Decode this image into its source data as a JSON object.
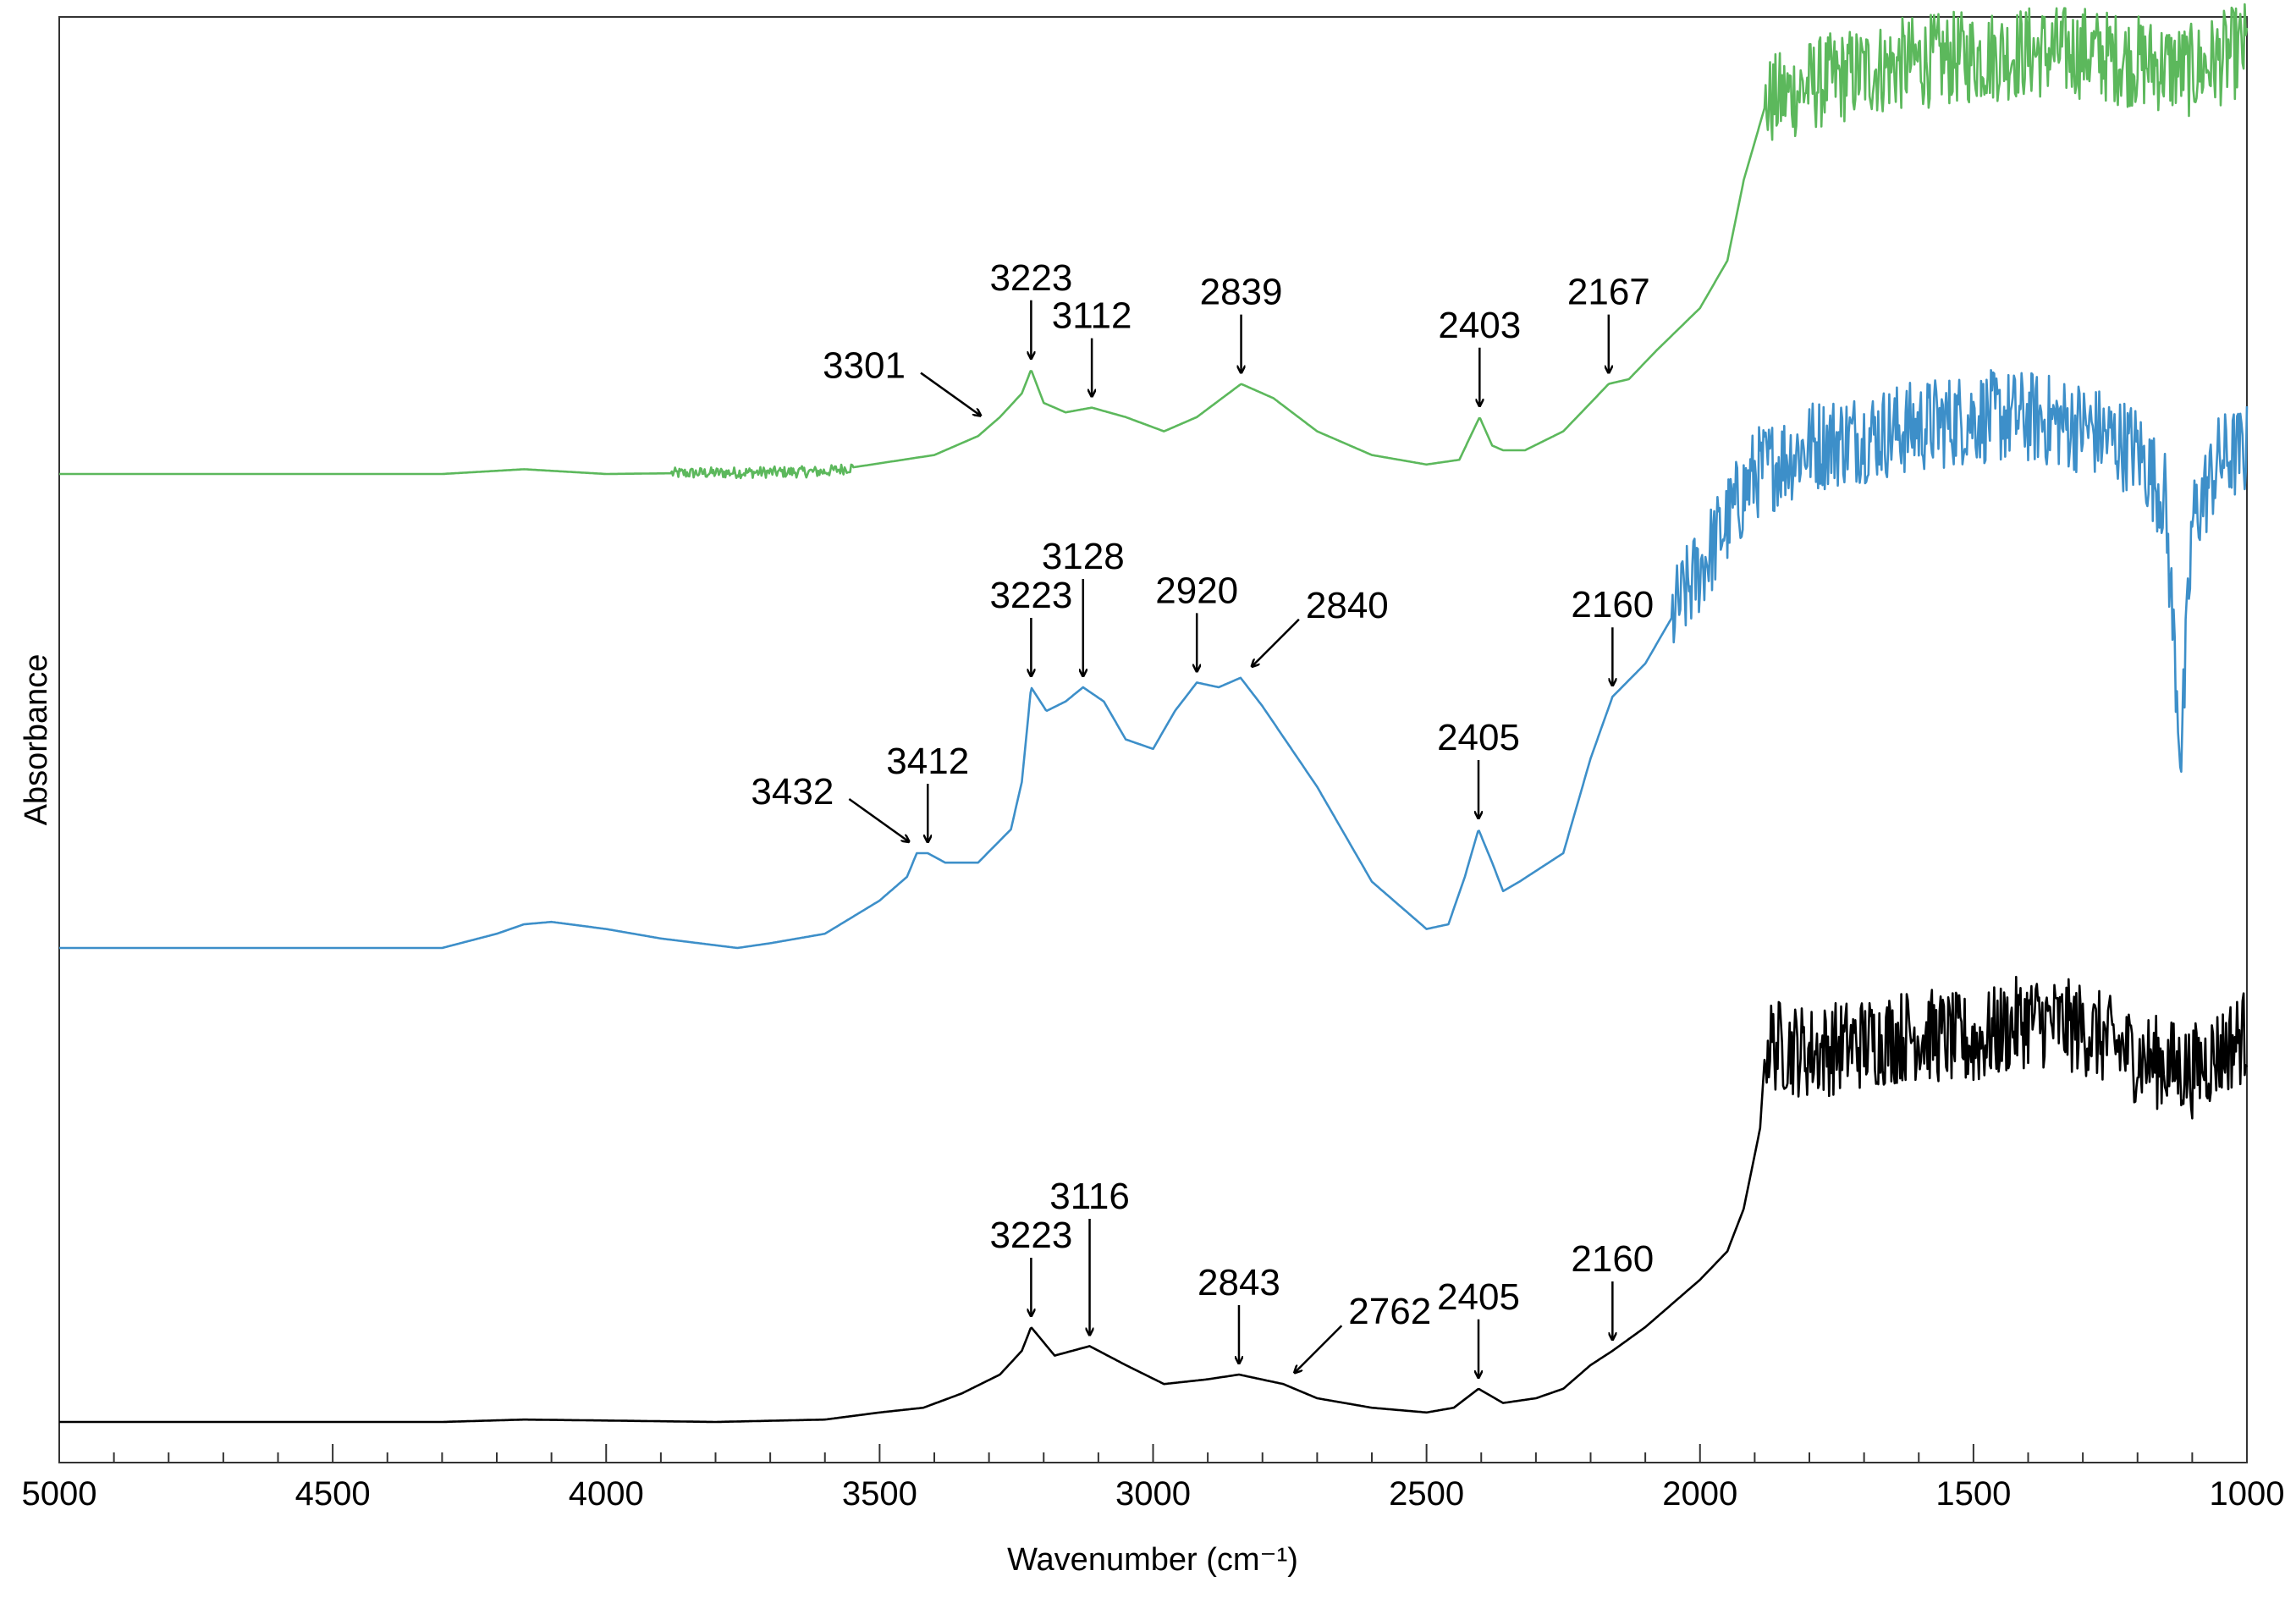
{
  "chart_data": {
    "type": "line",
    "title": "",
    "xlabel": "Wavenumber (cm⁻¹)",
    "ylabel": "Absorbance",
    "xlim": [
      5000,
      1000
    ],
    "x_reversed": true,
    "y_ticks_shown": false,
    "grid": false,
    "legend": "none",
    "x_ticks": [
      "5000",
      "4500",
      "4000",
      "3500",
      "3000",
      "2500",
      "2000",
      "1500",
      "1000"
    ],
    "x_tick_values": [
      5000,
      4500,
      4000,
      3500,
      3000,
      2500,
      2000,
      1500,
      1000
    ],
    "series": [
      {
        "color": "#5cb85c",
        "offset": 2.0,
        "noise": [
          {
            "from": 3880,
            "to": 3550,
            "amp": 0.012
          },
          {
            "from": 1880,
            "to": 1000,
            "amp": 0.1
          }
        ],
        "points": [
          [
            5000,
            0
          ],
          [
            4300,
            0
          ],
          [
            4150,
            0.01
          ],
          [
            4000,
            0
          ],
          [
            3600,
            0.005
          ],
          [
            3400,
            0.04
          ],
          [
            3320,
            0.08
          ],
          [
            3280,
            0.12
          ],
          [
            3240,
            0.17
          ],
          [
            3223,
            0.22
          ],
          [
            3200,
            0.15
          ],
          [
            3160,
            0.13
          ],
          [
            3112,
            0.14
          ],
          [
            3050,
            0.12
          ],
          [
            2980,
            0.09
          ],
          [
            2920,
            0.12
          ],
          [
            2839,
            0.19
          ],
          [
            2780,
            0.16
          ],
          [
            2700,
            0.09
          ],
          [
            2600,
            0.04
          ],
          [
            2500,
            0.02
          ],
          [
            2440,
            0.03
          ],
          [
            2403,
            0.12
          ],
          [
            2380,
            0.06
          ],
          [
            2360,
            0.05
          ],
          [
            2320,
            0.05
          ],
          [
            2250,
            0.09
          ],
          [
            2200,
            0.15
          ],
          [
            2167,
            0.19
          ],
          [
            2130,
            0.2
          ],
          [
            2080,
            0.26
          ],
          [
            2000,
            0.35
          ],
          [
            1950,
            0.45
          ],
          [
            1920,
            0.62
          ],
          [
            1880,
            0.78
          ],
          [
            1800,
            0.82
          ],
          [
            1700,
            0.85
          ],
          [
            1600,
            0.87
          ],
          [
            1500,
            0.88
          ],
          [
            1400,
            0.89
          ],
          [
            1300,
            0.89
          ],
          [
            1200,
            0.87
          ],
          [
            1100,
            0.85
          ],
          [
            1000,
            0.9
          ]
        ]
      },
      {
        "color": "#3d8fc9",
        "offset": 1.0,
        "noise": [
          {
            "from": 2050,
            "to": 1000,
            "amp": 0.1
          }
        ],
        "points": [
          [
            5000,
            0
          ],
          [
            4300,
            0
          ],
          [
            4200,
            0.03
          ],
          [
            4150,
            0.05
          ],
          [
            4100,
            0.055
          ],
          [
            4000,
            0.04
          ],
          [
            3900,
            0.02
          ],
          [
            3760,
            0
          ],
          [
            3700,
            0.01
          ],
          [
            3600,
            0.03
          ],
          [
            3500,
            0.1
          ],
          [
            3450,
            0.15
          ],
          [
            3432,
            0.2
          ],
          [
            3412,
            0.2
          ],
          [
            3380,
            0.18
          ],
          [
            3320,
            0.18
          ],
          [
            3260,
            0.25
          ],
          [
            3240,
            0.35
          ],
          [
            3223,
            0.55
          ],
          [
            3195,
            0.5
          ],
          [
            3160,
            0.52
          ],
          [
            3128,
            0.55
          ],
          [
            3090,
            0.52
          ],
          [
            3050,
            0.44
          ],
          [
            3000,
            0.42
          ],
          [
            2960,
            0.5
          ],
          [
            2920,
            0.56
          ],
          [
            2880,
            0.55
          ],
          [
            2840,
            0.57
          ],
          [
            2800,
            0.51
          ],
          [
            2700,
            0.34
          ],
          [
            2600,
            0.14
          ],
          [
            2500,
            0.04
          ],
          [
            2460,
            0.05
          ],
          [
            2430,
            0.15
          ],
          [
            2405,
            0.25
          ],
          [
            2380,
            0.18
          ],
          [
            2360,
            0.12
          ],
          [
            2330,
            0.14
          ],
          [
            2250,
            0.2
          ],
          [
            2200,
            0.4
          ],
          [
            2160,
            0.53
          ],
          [
            2100,
            0.6
          ],
          [
            2000,
            0.8
          ],
          [
            1950,
            0.9
          ],
          [
            1900,
            1.0
          ],
          [
            1800,
            1.06
          ],
          [
            1700,
            1.08
          ],
          [
            1600,
            1.1
          ],
          [
            1500,
            1.12
          ],
          [
            1400,
            1.12
          ],
          [
            1300,
            1.1
          ],
          [
            1200,
            1.05
          ],
          [
            1150,
            0.95
          ],
          [
            1120,
            0.4
          ],
          [
            1100,
            0.9
          ],
          [
            1050,
            1.03
          ],
          [
            1000,
            1.05
          ]
        ]
      },
      {
        "color": "#000000",
        "offset": 0.0,
        "noise": [
          {
            "from": 1880,
            "to": 1000,
            "amp": 0.1
          }
        ],
        "points": [
          [
            5000,
            0
          ],
          [
            4300,
            0
          ],
          [
            4150,
            0.005
          ],
          [
            4000,
            0.003
          ],
          [
            3800,
            0
          ],
          [
            3600,
            0.005
          ],
          [
            3500,
            0.02
          ],
          [
            3420,
            0.03
          ],
          [
            3350,
            0.06
          ],
          [
            3280,
            0.1
          ],
          [
            3240,
            0.15
          ],
          [
            3223,
            0.2
          ],
          [
            3180,
            0.14
          ],
          [
            3116,
            0.16
          ],
          [
            3050,
            0.12
          ],
          [
            2980,
            0.08
          ],
          [
            2900,
            0.09
          ],
          [
            2843,
            0.1
          ],
          [
            2762,
            0.08
          ],
          [
            2700,
            0.05
          ],
          [
            2600,
            0.03
          ],
          [
            2500,
            0.02
          ],
          [
            2450,
            0.03
          ],
          [
            2405,
            0.07
          ],
          [
            2360,
            0.04
          ],
          [
            2300,
            0.05
          ],
          [
            2250,
            0.07
          ],
          [
            2200,
            0.12
          ],
          [
            2160,
            0.15
          ],
          [
            2100,
            0.2
          ],
          [
            2000,
            0.3
          ],
          [
            1950,
            0.36
          ],
          [
            1920,
            0.45
          ],
          [
            1890,
            0.62
          ],
          [
            1880,
            0.8
          ],
          [
            1800,
            0.78
          ],
          [
            1700,
            0.8
          ],
          [
            1600,
            0.82
          ],
          [
            1500,
            0.8
          ],
          [
            1400,
            0.85
          ],
          [
            1300,
            0.83
          ],
          [
            1200,
            0.77
          ],
          [
            1100,
            0.74
          ],
          [
            1000,
            0.82
          ]
        ]
      }
    ],
    "annotations": [
      {
        "series": 0,
        "text": "3301",
        "x": 3301,
        "dir": "diag-left"
      },
      {
        "series": 0,
        "text": "3223",
        "x": 3223,
        "dir": "down"
      },
      {
        "series": 0,
        "text": "3112",
        "x": 3112,
        "dir": "down"
      },
      {
        "series": 0,
        "text": "2839",
        "x": 2839,
        "dir": "down"
      },
      {
        "series": 0,
        "text": "2403",
        "x": 2403,
        "dir": "down"
      },
      {
        "series": 0,
        "text": "2167",
        "x": 2167,
        "dir": "down"
      },
      {
        "series": 1,
        "text": "3432",
        "x": 3432,
        "dir": "diag-left"
      },
      {
        "series": 1,
        "text": "3412",
        "x": 3412,
        "dir": "down"
      },
      {
        "series": 1,
        "text": "3223",
        "x": 3223,
        "dir": "down"
      },
      {
        "series": 1,
        "text": "3128",
        "x": 3128,
        "dir": "down"
      },
      {
        "series": 1,
        "text": "2920",
        "x": 2920,
        "dir": "down"
      },
      {
        "series": 1,
        "text": "2840",
        "x": 2840,
        "dir": "diag-right"
      },
      {
        "series": 1,
        "text": "2405",
        "x": 2405,
        "dir": "down"
      },
      {
        "series": 1,
        "text": "2160",
        "x": 2160,
        "dir": "down"
      },
      {
        "series": 2,
        "text": "3223",
        "x": 3223,
        "dir": "down"
      },
      {
        "series": 2,
        "text": "3116",
        "x": 3116,
        "dir": "down"
      },
      {
        "series": 2,
        "text": "2843",
        "x": 2843,
        "dir": "down"
      },
      {
        "series": 2,
        "text": "2762",
        "x": 2762,
        "dir": "diag-right"
      },
      {
        "series": 2,
        "text": "2405",
        "x": 2405,
        "dir": "down"
      },
      {
        "series": 2,
        "text": "2160",
        "x": 2160,
        "dir": "down"
      }
    ]
  }
}
